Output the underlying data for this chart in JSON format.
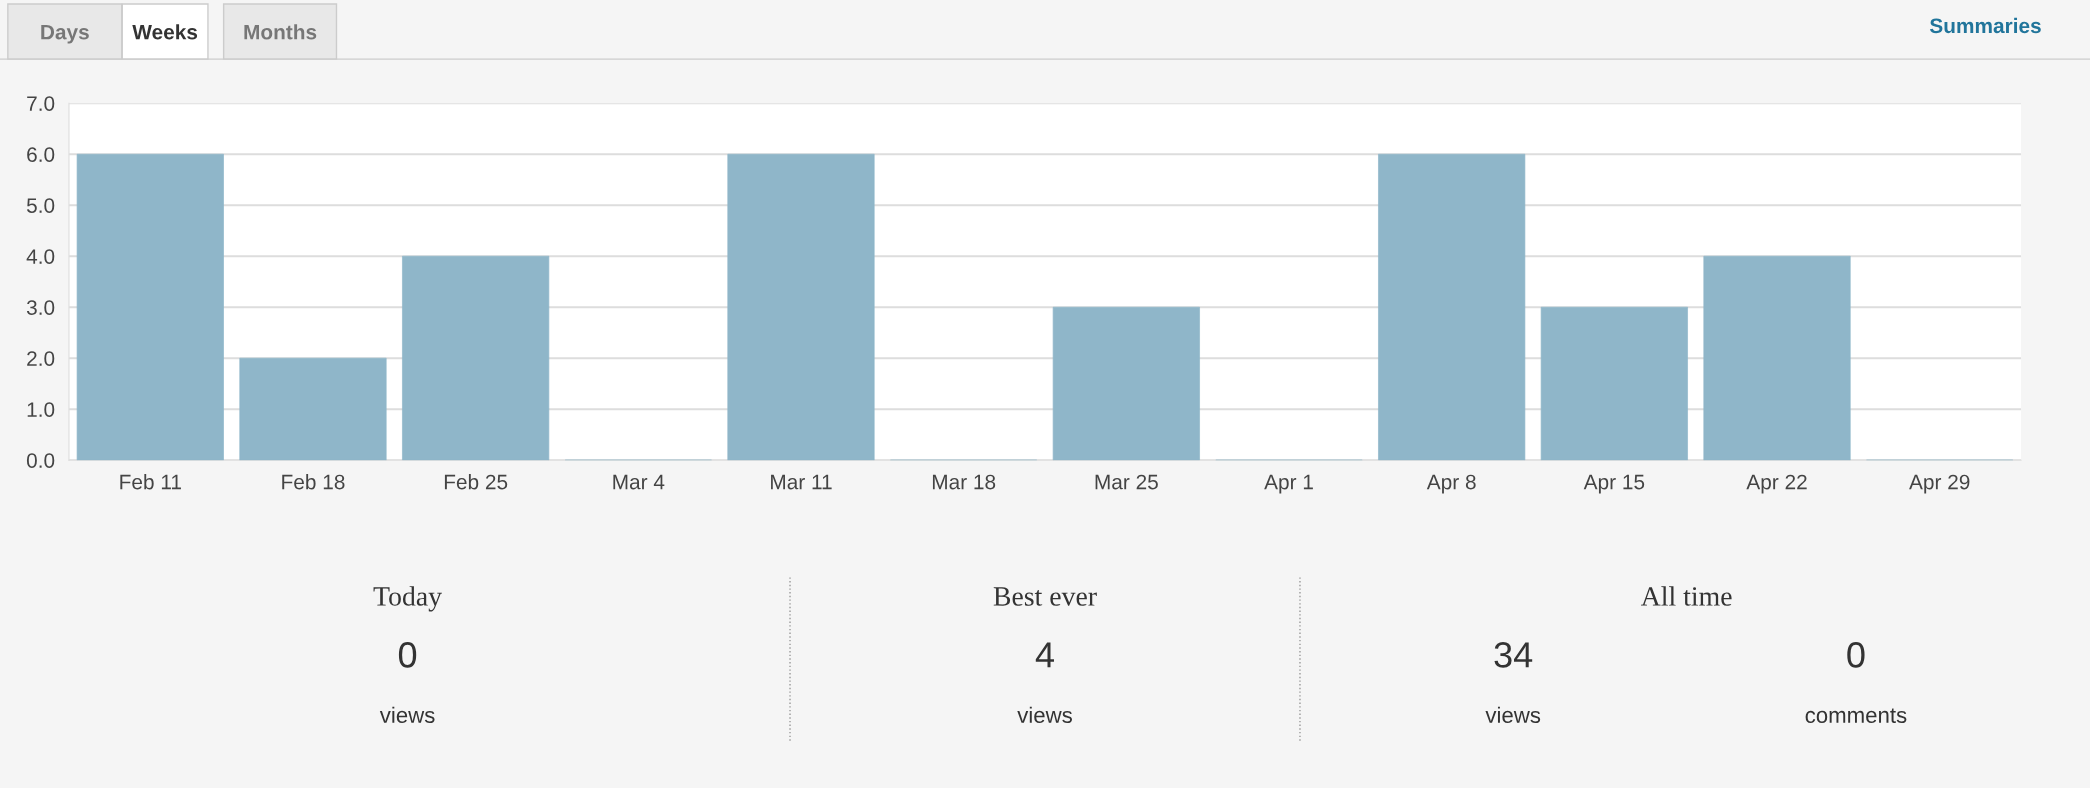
{
  "chart_data": [
    {
      "type": "other",
      "annotations": [
        "Days",
        "Weeks",
        "Months",
        "Summaries"
      ]
    },
    {
      "type": "bar",
      "categories": [
        "Feb 11",
        "Feb 18",
        "Feb 25",
        "Mar 4",
        "Mar 11",
        "Mar 18",
        "Mar 25",
        "Apr 1",
        "Apr 8",
        "Apr 15",
        "Apr 22",
        "Apr 29"
      ],
      "values": [
        6,
        2,
        4,
        0,
        6,
        0,
        3,
        0,
        6,
        3,
        4,
        0
      ],
      "color": "#8fb6c9",
      "ylim": [
        0,
        7
      ],
      "yticks": [
        {
          "value": 0,
          "label": "0.0"
        },
        {
          "value": 1,
          "label": "1.0"
        },
        {
          "value": 2,
          "label": "2.0"
        },
        {
          "value": 3,
          "label": "3.0"
        },
        {
          "value": 4,
          "label": "4.0"
        },
        {
          "value": 5,
          "label": "5.0"
        },
        {
          "value": 6,
          "label": "6.0"
        },
        {
          "value": 7,
          "label": "7.0"
        }
      ],
      "grid": "y",
      "legend": false
    },
    {
      "type": "other",
      "annotations": [
        "Today",
        "0",
        "views",
        "Best ever",
        "4",
        "views",
        "All time",
        "34",
        "views",
        "0",
        "comments"
      ]
    }
  ]
}
